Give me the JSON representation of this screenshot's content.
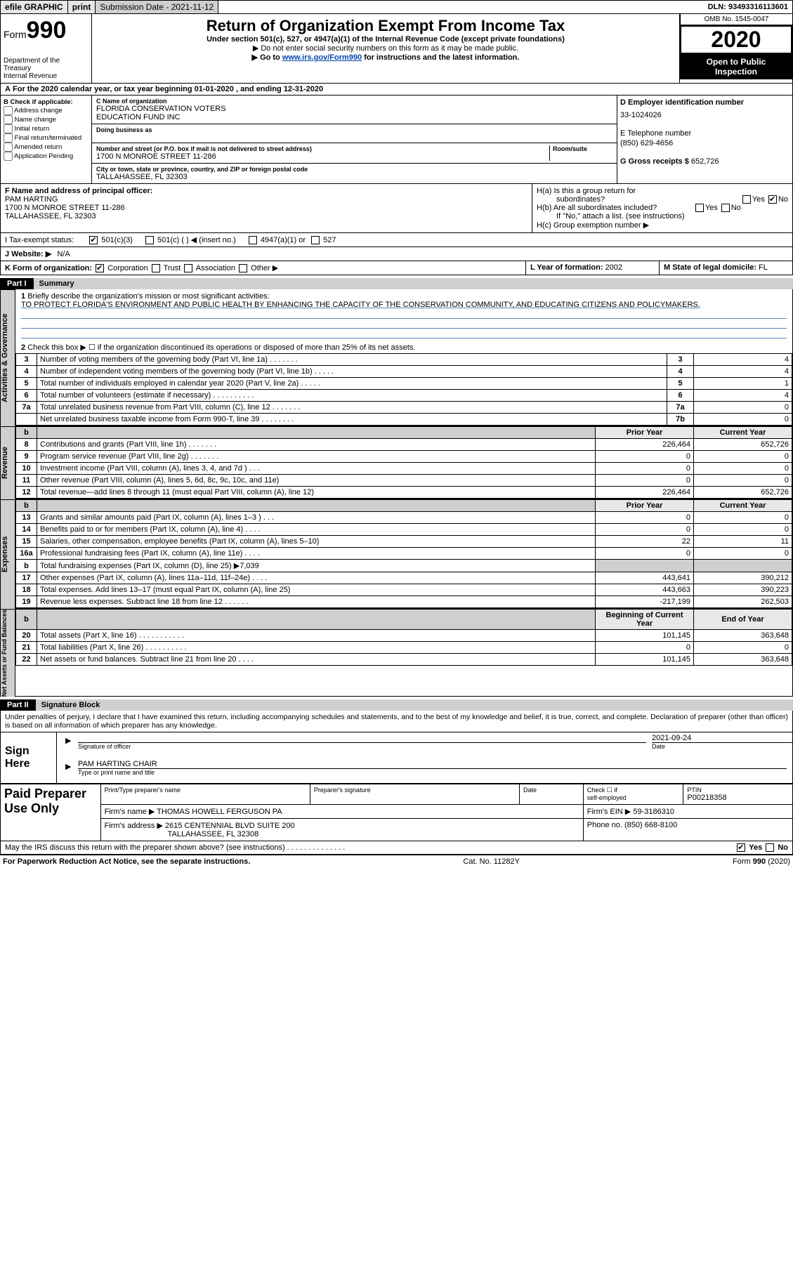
{
  "doc": {
    "topbar": {
      "efile": "efile GRAPHIC",
      "print": "print",
      "sub_label": "Submission Date - ",
      "sub_date": "2021-11-12",
      "dln_label": "DLN: ",
      "dln": "93493316113601"
    },
    "header": {
      "form_word": "Form",
      "form_num": "990",
      "dept1": "Department of the Treasury",
      "dept2": "Internal Revenue",
      "title": "Return of Organization Exempt From Income Tax",
      "sub1": "Under section 501(c), 527, or 4947(a)(1) of the Internal Revenue Code (except private foundations)",
      "sub2": "▶ Do not enter social security numbers on this form as it may be made public.",
      "sub3_pre": "▶ Go to ",
      "sub3_link": "www.irs.gov/Form990",
      "sub3_post": " for instructions and the latest information.",
      "omb": "OMB No. 1545-0047",
      "year": "2020",
      "open1": "Open to Public",
      "open2": "Inspection"
    },
    "period": {
      "A": "A",
      "text1": "For the 2020 calendar year, or tax year beginning ",
      "begin": "01-01-2020",
      "text2": " , and ending ",
      "end": "12-31-2020"
    },
    "B": {
      "hdr": "B Check if applicable:",
      "opts": [
        "Address change",
        "Name change",
        "Initial return",
        "Final return/terminated",
        "Amended return",
        "Application Pending"
      ]
    },
    "C": {
      "name_lbl": "C Name of organization",
      "name1": "FLORIDA CONSERVATION VOTERS",
      "name2": "EDUCATION FUND INC",
      "dba_lbl": "Doing business as",
      "addr_lbl": "Number and street (or P.O. box if mail is not delivered to street address)",
      "room_lbl": "Room/suite",
      "addr": "1700 N MONROE STREET 11-286",
      "city_lbl": "City or town, state or province, country, and ZIP or foreign postal code",
      "city": "TALLAHASSEE, FL  32303"
    },
    "D": {
      "lbl": "D Employer identification number",
      "val": "33-1024026"
    },
    "E": {
      "lbl": "E Telephone number",
      "val": "(850) 629-4656"
    },
    "G": {
      "lbl": "G Gross receipts $ ",
      "val": "652,726"
    },
    "F": {
      "lbl": "F  Name and address of principal officer:",
      "name": "PAM HARTING",
      "addr1": "1700 N MONROE STREET 11-286",
      "addr2": "TALLAHASSEE, FL  32303"
    },
    "H": {
      "a1": "H(a)  Is this a group return for",
      "a2": "subordinates?",
      "b1": "H(b)  Are all subordinates included?",
      "b2": "If \"No,\" attach a list. (see instructions)",
      "c": "H(c)  Group exemption number ▶",
      "yes": "Yes",
      "no": "No"
    },
    "I": {
      "pre": "I   Tax-exempt status:",
      "o1": "501(c)(3)",
      "o2": "501(c) (   ) ◀ (insert no.)",
      "o3": "4947(a)(1) or",
      "o4": "527"
    },
    "J": {
      "pre": "J   Website: ▶",
      "val": "N/A"
    },
    "K": {
      "pre": "K Form of organization:",
      "o1": "Corporation",
      "o2": "Trust",
      "o3": "Association",
      "o4": "Other ▶"
    },
    "L": {
      "lbl": "L Year of formation: ",
      "val": "2002"
    },
    "M": {
      "lbl": "M State of legal domicile: ",
      "val": "FL"
    },
    "part1": {
      "tag": "Part I",
      "title": "Summary"
    },
    "mission": {
      "num": "1",
      "lbl": "Briefly describe the organization's mission or most significant activities:",
      "text": "TO PROTECT FLORIDA'S ENVIRONMENT AND PUBLIC HEALTH BY ENHANCING THE CAPACITY OF THE CONSERVATION COMMUNITY, AND EDUCATING CITIZENS AND POLICYMAKERS."
    },
    "side_ag": "Activities & Governance",
    "side_rev": "Revenue",
    "side_exp": "Expenses",
    "side_na": "Net Assets or Fund Balances",
    "line2": {
      "n": "2",
      "t": "Check this box ▶ ☐  if the organization discontinued its operations or disposed of more than 25% of its net assets."
    },
    "ag_rows": [
      {
        "n": "3",
        "t": "Number of voting members of the governing body (Part VI, line 1a)  .   .   .   .   .   .   .",
        "b": "3",
        "v": "4"
      },
      {
        "n": "4",
        "t": "Number of independent voting members of the governing body (Part VI, line 1b)  .   .   .   .   .",
        "b": "4",
        "v": "4"
      },
      {
        "n": "5",
        "t": "Total number of individuals employed in calendar year 2020 (Part V, line 2a)  .   .   .   .   .",
        "b": "5",
        "v": "1"
      },
      {
        "n": "6",
        "t": "Total number of volunteers (estimate if necessary)  .   .   .   .   .   .   .   .   .   .",
        "b": "6",
        "v": "4"
      },
      {
        "n": "7a",
        "t": "Total unrelated business revenue from Part VIII, column (C), line 12  .   .   .   .   .   .   .",
        "b": "7a",
        "v": "0"
      },
      {
        "n": "",
        "t": "Net unrelated business taxable income from Form 990-T, line 39  .   .   .   .   .   .   .   .",
        "b": "7b",
        "v": "0"
      }
    ],
    "cols": {
      "b": "b",
      "py": "Prior Year",
      "cy": "Current Year",
      "boc": "Beginning of Current Year",
      "eoy": "End of Year"
    },
    "rev_rows": [
      {
        "n": "8",
        "t": "Contributions and grants (Part VIII, line 1h)  .   .   .   .   .   .   .",
        "py": "226,464",
        "cy": "652,726"
      },
      {
        "n": "9",
        "t": "Program service revenue (Part VIII, line 2g)  .   .   .   .   .   .   .",
        "py": "0",
        "cy": "0"
      },
      {
        "n": "10",
        "t": "Investment income (Part VIII, column (A), lines 3, 4, and 7d )  .   .   .",
        "py": "0",
        "cy": "0"
      },
      {
        "n": "11",
        "t": "Other revenue (Part VIII, column (A), lines 5, 6d, 8c, 9c, 10c, and 11e)",
        "py": "0",
        "cy": "0"
      },
      {
        "n": "12",
        "t": "Total revenue—add lines 8 through 11 (must equal Part VIII, column (A), line 12)",
        "py": "226,464",
        "cy": "652,726"
      }
    ],
    "exp_rows": [
      {
        "n": "13",
        "t": "Grants and similar amounts paid (Part IX, column (A), lines 1–3 )  .   .   .",
        "py": "0",
        "cy": "0"
      },
      {
        "n": "14",
        "t": "Benefits paid to or for members (Part IX, column (A), line 4)  .   .   .   .",
        "py": "0",
        "cy": "0"
      },
      {
        "n": "15",
        "t": "Salaries, other compensation, employee benefits (Part IX, column (A), lines 5–10)",
        "py": "22",
        "cy": "11"
      },
      {
        "n": "16a",
        "t": "Professional fundraising fees (Part IX, column (A), line 11e)  .   .   .   .",
        "py": "0",
        "cy": "0"
      },
      {
        "n": "b",
        "t": "Total fundraising expenses (Part IX, column (D), line 25) ▶7,039",
        "py": "",
        "cy": "",
        "shade": true
      },
      {
        "n": "17",
        "t": "Other expenses (Part IX, column (A), lines 11a–11d, 11f–24e)  .   .   .   .",
        "py": "443,641",
        "cy": "390,212"
      },
      {
        "n": "18",
        "t": "Total expenses. Add lines 13–17 (must equal Part IX, column (A), line 25)",
        "py": "443,663",
        "cy": "390,223"
      },
      {
        "n": "19",
        "t": "Revenue less expenses. Subtract line 18 from line 12  .   .   .   .   .   .",
        "py": "-217,199",
        "cy": "262,503"
      }
    ],
    "na_rows": [
      {
        "n": "20",
        "t": "Total assets (Part X, line 16)  .   .   .   .   .   .   .   .   .   .   .",
        "py": "101,145",
        "cy": "363,648"
      },
      {
        "n": "21",
        "t": "Total liabilities (Part X, line 26)  .   .   .   .   .   .   .   .   .   .",
        "py": "0",
        "cy": "0"
      },
      {
        "n": "22",
        "t": "Net assets or fund balances. Subtract line 21 from line 20  .   .   .   .",
        "py": "101,145",
        "cy": "363,648"
      }
    ],
    "part2": {
      "tag": "Part II",
      "title": "Signature Block"
    },
    "penalty": "Under penalties of perjury, I declare that I have examined this return, including accompanying schedules and statements, and to the best of my knowledge and belief, it is true, correct, and complete. Declaration of preparer (other than officer) is based on all information of which preparer has any knowledge.",
    "sign": {
      "here": "Sign Here",
      "sig_lbl": "Signature of officer",
      "date_lbl": "Date",
      "date": "2021-09-24",
      "name": "PAM HARTING  CHAIR",
      "name_lbl": "Type or print name and title"
    },
    "prep": {
      "here": "Paid Preparer Use Only",
      "h1": "Print/Type preparer's name",
      "h2": "Preparer's signature",
      "h3": "Date",
      "h4a": "Check ☐ if",
      "h4b": "self-employed",
      "h5": "PTIN",
      "ptin": "P00218358",
      "firm_lbl": "Firm's name    ▶",
      "firm": "THOMAS HOWELL FERGUSON PA",
      "ein_lbl": "Firm's EIN ▶",
      "ein": "59-3186310",
      "addr_lbl": "Firm's address ▶",
      "addr1": "2615 CENTENNIAL BLVD SUITE 200",
      "addr2": "TALLAHASSEE, FL  32308",
      "phone_lbl": "Phone no. ",
      "phone": "(850) 668-8100"
    },
    "discuss": {
      "q": "May the IRS discuss this return with the preparer shown above? (see instructions)  .   .   .   .   .   .   .   .   .   .   .   .   .   .",
      "yes": "Yes",
      "no": "No"
    },
    "footer": {
      "l": "For Paperwork Reduction Act Notice, see the separate instructions.",
      "m": "Cat. No. 11282Y",
      "r": "Form 990 (2020)"
    },
    "colors": {
      "link": "#0645ad",
      "shade": "#cfcfcf",
      "ruleline": "#5a7fbf"
    }
  }
}
